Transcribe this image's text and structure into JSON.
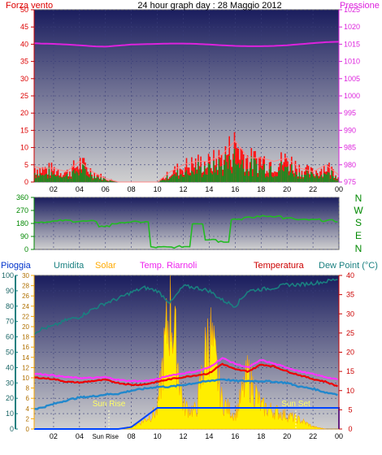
{
  "header": {
    "left_label": "Forza vento",
    "center_title": "24 hour graph day : 28 Maggio 2012",
    "right_label": "Pressione"
  },
  "mid": {
    "dir_labels": [
      "N",
      "W",
      "S",
      "E",
      "N"
    ]
  },
  "bottom_header": {
    "pioggia": "Pioggia",
    "umidita": "Umidita",
    "solar": "Solar",
    "riarnoli": "Temp. Riarnoli",
    "temperatura": "Temperatura",
    "dewpoint": "Dew Point (°C)"
  },
  "annotations": {
    "sunrise": "Sun Rise",
    "sunset": "Sun Set"
  },
  "colors": {
    "panel_top": "#1a1d5e",
    "panel_bottom": "#d0d0d0",
    "wind": "#ff1010",
    "gust": "#ff8888",
    "wind_avg": "#228822",
    "pressure": "#dd22dd",
    "direction": "#22bb22",
    "rain": "#0044ff",
    "humidity": "#1a8080",
    "solar": "#ffee00",
    "riarnoli": "#ff33ff",
    "temperature": "#ee0000",
    "dewpoint": "#2288cc"
  },
  "chart_data": [
    {
      "type": "area",
      "title": "24 hour graph day : 28 Maggio 2012",
      "x_ticks": [
        "02",
        "04",
        "06",
        "08",
        "10",
        "12",
        "14",
        "16",
        "18",
        "20",
        "22",
        "00"
      ],
      "y_left_ticks": [
        "0",
        "5",
        "10",
        "15",
        "20",
        "25",
        "30",
        "35",
        "40",
        "45",
        "50"
      ],
      "y_right_ticks": [
        "975",
        "980",
        "985",
        "990",
        "995",
        "1000",
        "1005",
        "1010",
        "1015",
        "1020",
        "1025"
      ],
      "ylim_left": [
        0,
        50
      ],
      "ylim_right": [
        975,
        1025
      ],
      "x_hours": [
        0,
        1,
        2,
        3,
        4,
        5,
        6,
        7,
        8,
        9,
        10,
        11,
        12,
        13,
        14,
        15,
        16,
        17,
        18,
        19,
        20,
        21,
        22,
        23,
        24
      ],
      "series": [
        {
          "name": "Forza vento",
          "values": [
            5,
            4,
            4,
            3,
            6,
            3,
            1,
            0,
            0,
            0,
            0,
            3,
            5,
            6,
            6,
            8,
            12,
            7,
            7,
            6,
            7,
            4,
            3,
            5,
            2
          ]
        },
        {
          "name": "Pressione",
          "values": [
            1015.3,
            1015.2,
            1015.1,
            1014.9,
            1014.7,
            1014.4,
            1014.3,
            1014.6,
            1014.9,
            1015.0,
            1015.1,
            1015.2,
            1015.2,
            1015.1,
            1014.9,
            1014.7,
            1014.5,
            1014.4,
            1014.4,
            1014.5,
            1014.7,
            1015.0,
            1015.3,
            1015.6,
            1015.7
          ]
        }
      ]
    },
    {
      "type": "line",
      "title": "",
      "y_ticks": [
        "0",
        "90",
        "180",
        "270",
        "360"
      ],
      "ylim": [
        0,
        360
      ],
      "x_hours": [
        0,
        1,
        2,
        3,
        4,
        5,
        6,
        7,
        8,
        9,
        10,
        11,
        12,
        13,
        14,
        15,
        16,
        17,
        18,
        19,
        20,
        21,
        22,
        23,
        24
      ],
      "series": [
        {
          "name": "Wind direction",
          "values": [
            190,
            190,
            195,
            200,
            195,
            195,
            160,
            180,
            190,
            190,
            15,
            15,
            20,
            180,
            70,
            55,
            210,
            220,
            230,
            230,
            215,
            205,
            205,
            200,
            195
          ]
        }
      ]
    },
    {
      "type": "line",
      "title": "",
      "x_ticks": [
        "02",
        "04",
        "Sun Rise",
        "08",
        "10",
        "12",
        "14",
        "16",
        "18",
        "20",
        "22",
        "00"
      ],
      "y_left_ticks": [
        "0",
        "10",
        "20",
        "30",
        "40",
        "50",
        "60",
        "70",
        "80",
        "90",
        "100"
      ],
      "y_solar_ticks": [
        "0",
        "2",
        "4",
        "6",
        "8",
        "10",
        "12",
        "14",
        "16",
        "18",
        "20",
        "22",
        "24",
        "26",
        "28",
        "30"
      ],
      "y_right_ticks": [
        "0",
        "5",
        "10",
        "15",
        "20",
        "25",
        "30",
        "35",
        "40"
      ],
      "ylim_left": [
        0,
        100
      ],
      "ylim_solar": [
        0,
        30
      ],
      "ylim_right": [
        0,
        40
      ],
      "x_hours": [
        0,
        1,
        2,
        3,
        4,
        5,
        6,
        7,
        8,
        9,
        10,
        11,
        12,
        13,
        14,
        15,
        16,
        17,
        18,
        19,
        20,
        21,
        22,
        23,
        24
      ],
      "series": [
        {
          "name": "Pioggia",
          "axis": "right",
          "values": [
            0,
            0,
            0,
            0,
            0,
            0,
            0,
            0,
            0.5,
            3,
            5.5,
            5.5,
            5.5,
            5.5,
            5.5,
            5.5,
            5.5,
            5.5,
            5.5,
            5.5,
            5.5,
            5.5,
            5.5,
            5.5,
            5.5
          ]
        },
        {
          "name": "Umidita",
          "axis": "left",
          "values": [
            60,
            65,
            67,
            71,
            73,
            78,
            82,
            85,
            89,
            92,
            90,
            82,
            93,
            92,
            90,
            84,
            80,
            90,
            91,
            92,
            94,
            94,
            95,
            96,
            98
          ]
        },
        {
          "name": "Solar",
          "axis": "solar",
          "values": [
            0,
            0,
            0,
            0,
            0,
            0,
            0,
            0,
            0.5,
            2,
            4,
            28,
            5,
            4,
            22,
            6,
            3,
            12,
            5,
            4,
            3,
            2,
            0.5,
            0,
            0
          ]
        },
        {
          "name": "Temp. Riarnoli",
          "axis": "right",
          "values": [
            14.5,
            14.3,
            14,
            13.5,
            13.3,
            13.3,
            13.5,
            12.8,
            12.5,
            12.5,
            13,
            14,
            14.5,
            15,
            16,
            18.5,
            17,
            16,
            18,
            17,
            16,
            15,
            14.3,
            13.5,
            12.8
          ]
        },
        {
          "name": "Temperatura",
          "axis": "right",
          "values": [
            13.5,
            13.3,
            13,
            12.3,
            12.1,
            12.5,
            12.8,
            12,
            11.5,
            11.6,
            12.3,
            13,
            13.5,
            14,
            14.5,
            17,
            15.5,
            15,
            16.8,
            16.3,
            15,
            14,
            13,
            12.3,
            11
          ]
        },
        {
          "name": "Dew Point (°C)",
          "axis": "right",
          "values": [
            5,
            5.5,
            6.5,
            7.5,
            8.2,
            8.5,
            9,
            9.2,
            10,
            10.5,
            11,
            11,
            11.5,
            12,
            12.5,
            13,
            12.5,
            12.5,
            12.5,
            12.3,
            12,
            11,
            10.5,
            9.5,
            9
          ]
        }
      ]
    }
  ]
}
